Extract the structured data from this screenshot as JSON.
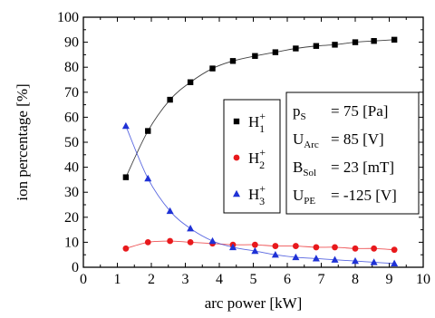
{
  "top_strip": "",
  "chart_data": {
    "type": "scatter",
    "title": "",
    "xlabel": "arc power [kW]",
    "ylabel": "ion percentage [%]",
    "xlim": [
      0,
      10
    ],
    "ylim": [
      0,
      100
    ],
    "xticks": [
      0,
      1,
      2,
      3,
      4,
      5,
      6,
      7,
      8,
      9,
      10
    ],
    "yticks": [
      0,
      10,
      20,
      30,
      40,
      50,
      60,
      70,
      80,
      90,
      100
    ],
    "grid": false,
    "legend_position": "center-right",
    "series": [
      {
        "name": "H1+",
        "label_base": "H",
        "label_sup": "+",
        "label_sub": "1",
        "color": "#000000",
        "marker": "square",
        "x": [
          1.25,
          1.9,
          2.55,
          3.15,
          3.8,
          4.4,
          5.05,
          5.65,
          6.25,
          6.85,
          7.4,
          8.0,
          8.55,
          9.15
        ],
        "y": [
          36.0,
          54.5,
          67.0,
          74.0,
          79.5,
          82.5,
          84.5,
          86.0,
          87.5,
          88.5,
          89.0,
          90.0,
          90.5,
          91.0
        ]
      },
      {
        "name": "H2+",
        "label_base": "H",
        "label_sup": "+",
        "label_sub": "2",
        "color": "#e8191c",
        "marker": "circle",
        "x": [
          1.25,
          1.9,
          2.55,
          3.15,
          3.8,
          4.4,
          5.05,
          5.65,
          6.25,
          6.85,
          7.4,
          8.0,
          8.55,
          9.15
        ],
        "y": [
          7.5,
          10.0,
          10.5,
          10.0,
          9.5,
          9.0,
          9.0,
          8.5,
          8.5,
          8.0,
          8.0,
          7.5,
          7.5,
          7.0
        ]
      },
      {
        "name": "H3+",
        "label_base": "H",
        "label_sup": "+",
        "label_sub": "3",
        "color": "#1f32d6",
        "marker": "triangle",
        "x": [
          1.25,
          1.9,
          2.55,
          3.15,
          3.8,
          4.4,
          5.05,
          5.65,
          6.25,
          6.85,
          7.4,
          8.0,
          8.55,
          9.15
        ],
        "y": [
          56.5,
          35.5,
          22.5,
          15.5,
          10.5,
          8.0,
          6.5,
          5.0,
          4.0,
          3.5,
          3.0,
          2.5,
          2.0,
          1.5
        ]
      }
    ],
    "info_box": [
      {
        "base": "p",
        "sub": "S",
        "value": "= 75 [Pa]"
      },
      {
        "base": "U",
        "sub": "Arc",
        "value": "= 85 [V]"
      },
      {
        "base": "B",
        "sub": "Sol",
        "value": "= 23 [mT]"
      },
      {
        "base": "U",
        "sub": "PE",
        "value": "= -125 [V]"
      }
    ]
  }
}
